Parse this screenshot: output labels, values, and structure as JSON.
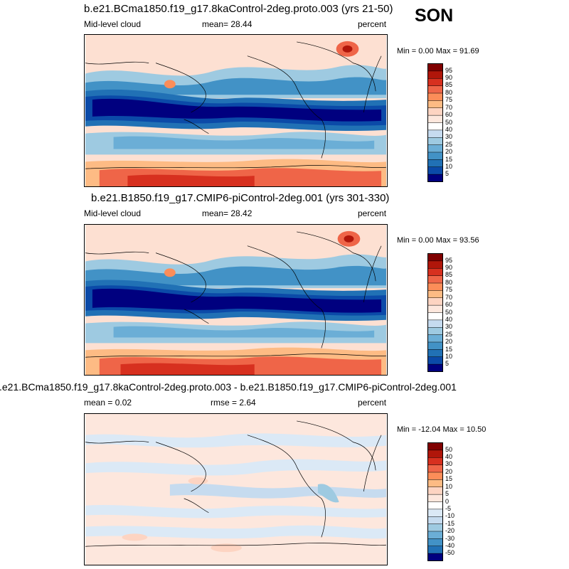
{
  "season": "SON",
  "panels": [
    {
      "title": "b.e21.BCma1850.f19_g17.8kaControl-2deg.proto.003 (yrs 21-50)",
      "left_label": "Mid-level cloud",
      "center_label": "mean=  28.44",
      "right_label": "percent",
      "minmax": "Min =  0.00 Max =  91.69",
      "colorbar_labels": [
        "95",
        "90",
        "85",
        "80",
        "75",
        "70",
        "60",
        "50",
        "40",
        "30",
        "25",
        "20",
        "15",
        "10",
        "5"
      ]
    },
    {
      "title": "b.e21.B1850.f19_g17.CMIP6-piControl-2deg.001 (yrs 301-330)",
      "left_label": "Mid-level cloud",
      "center_label": "mean=  28.42",
      "right_label": "percent",
      "minmax": "Min =  0.00 Max =  93.56",
      "colorbar_labels": [
        "95",
        "90",
        "85",
        "80",
        "75",
        "70",
        "60",
        "50",
        "40",
        "30",
        "25",
        "20",
        "15",
        "10",
        "5"
      ]
    },
    {
      "title": ".e21.BCma1850.f19_g17.8kaControl-2deg.proto.003 - b.e21.B1850.f19_g17.CMIP6-piControl-2deg.001",
      "left_label": "mean =   0.02",
      "center_label": "rmse =   2.64",
      "right_label": "percent",
      "minmax": "Min = -12.04 Max =  10.50",
      "colorbar_labels": [
        "50",
        "40",
        "30",
        "20",
        "15",
        "10",
        "5",
        "0",
        "-5",
        "-10",
        "-15",
        "-20",
        "-30",
        "-40",
        "-50"
      ]
    }
  ],
  "colors": {
    "abs_scale": [
      "#800000",
      "#b0160a",
      "#d7301f",
      "#ef6548",
      "#fc8d59",
      "#fdbb84",
      "#fdd4c2",
      "#fde7dd",
      "#ffffff",
      "#c6dbef",
      "#9ecae1",
      "#6baed6",
      "#4292c6",
      "#2171b5",
      "#0b4aa8",
      "#00007f"
    ],
    "diff_scale": [
      "#800000",
      "#b0160a",
      "#d7301f",
      "#ef6548",
      "#fc8d59",
      "#fdbb84",
      "#fdd4c2",
      "#fde7dd",
      "#ffffff",
      "#dbe9f6",
      "#c6dbef",
      "#9ecae1",
      "#6baed6",
      "#4292c6",
      "#2171b5",
      "#00007f"
    ]
  }
}
